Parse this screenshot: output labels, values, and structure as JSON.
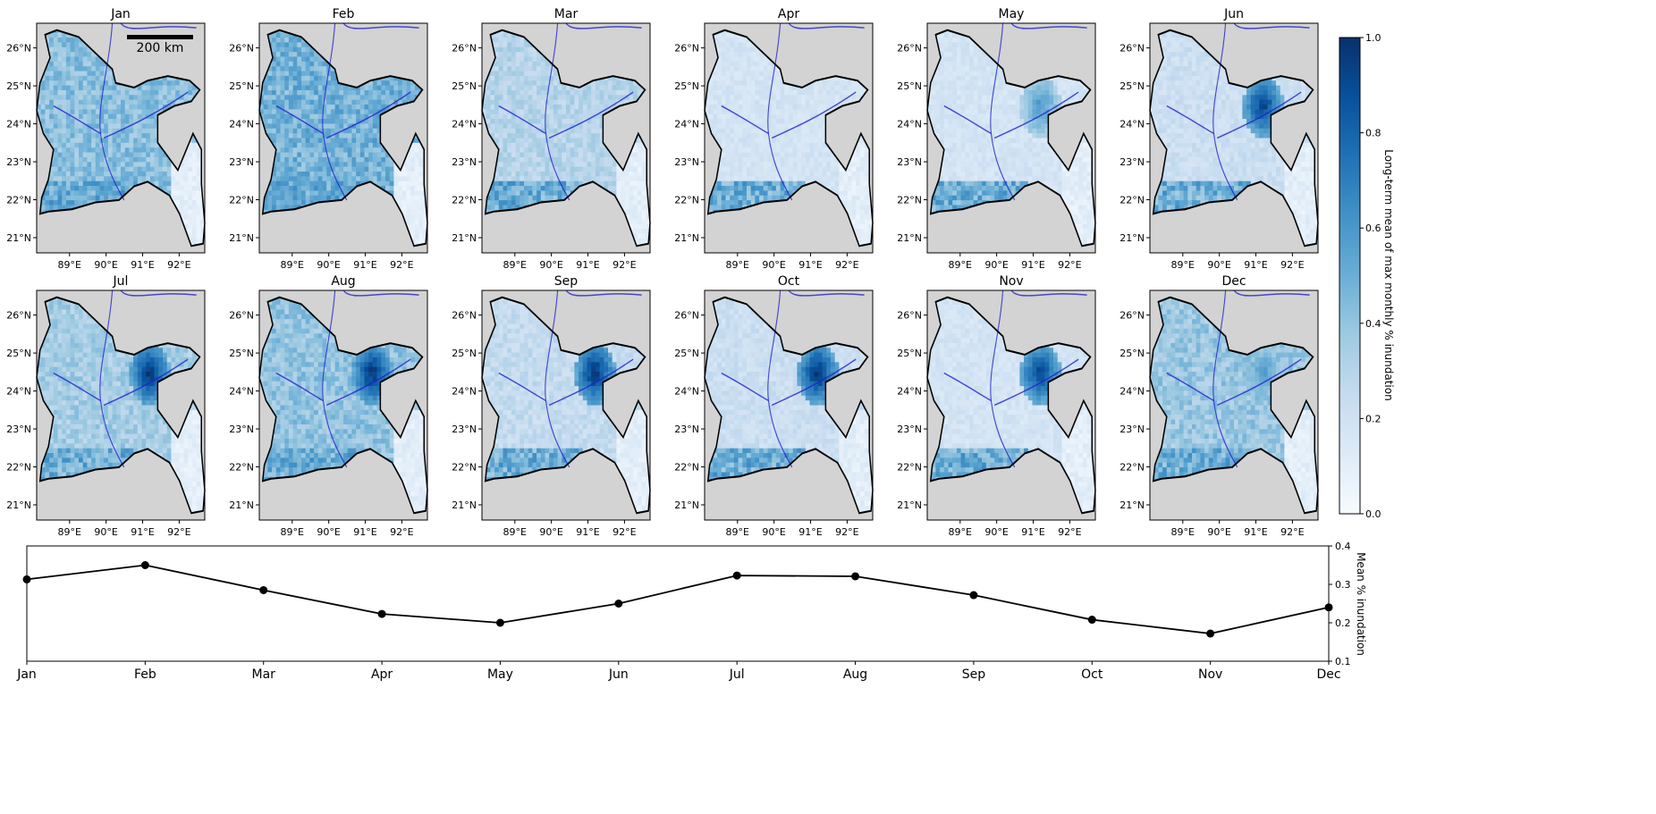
{
  "panel_ticks": {
    "lat_labels": [
      "26°N",
      "25°N",
      "24°N",
      "23°N",
      "22°N",
      "21°N"
    ],
    "lon_labels": [
      "89°E",
      "90°E",
      "91°E",
      "92°E"
    ]
  },
  "scalebar_label": "200 km",
  "colorbar": {
    "label": "Long-term mean of max monthly % inundation",
    "ticks": [
      "0.0",
      "0.2",
      "0.4",
      "0.6",
      "0.8",
      "1.0"
    ],
    "colormap": "Blues",
    "color_low": "#f7fbff",
    "color_high": "#08306b"
  },
  "map_colors": {
    "outside_country": "#d3d3d3",
    "rivers": "#2222cc",
    "border": "#000000"
  },
  "chart_data": [
    {
      "type": "heatmap",
      "description_source": "12 monthly maps of inundation fraction over Bangladesh",
      "panels": [
        {
          "title": "Jan",
          "west_mean": 0.42,
          "haor": 0.45
        },
        {
          "title": "Feb",
          "west_mean": 0.48,
          "haor": 0.45
        },
        {
          "title": "Mar",
          "west_mean": 0.3,
          "haor": 0.2
        },
        {
          "title": "Apr",
          "west_mean": 0.18,
          "haor": 0.1
        },
        {
          "title": "May",
          "west_mean": 0.18,
          "haor": 0.55
        },
        {
          "title": "Jun",
          "west_mean": 0.22,
          "haor": 0.9
        },
        {
          "title": "Jul",
          "west_mean": 0.35,
          "haor": 0.95
        },
        {
          "title": "Aug",
          "west_mean": 0.4,
          "haor": 0.95
        },
        {
          "title": "Sep",
          "west_mean": 0.25,
          "haor": 0.95
        },
        {
          "title": "Oct",
          "west_mean": 0.22,
          "haor": 0.95
        },
        {
          "title": "Nov",
          "west_mean": 0.18,
          "haor": 0.9
        },
        {
          "title": "Dec",
          "west_mean": 0.38,
          "haor": 0.55
        }
      ],
      "x_range": [
        88.1,
        92.7
      ],
      "y_range": [
        20.6,
        26.65
      ],
      "clim": [
        0.0,
        1.0
      ]
    },
    {
      "type": "line",
      "categories": [
        "Jan",
        "Feb",
        "Mar",
        "Apr",
        "May",
        "Jun",
        "Jul",
        "Aug",
        "Sep",
        "Oct",
        "Nov",
        "Dec"
      ],
      "series": [
        {
          "values": [
            0.313,
            0.35,
            0.285,
            0.223,
            0.2,
            0.25,
            0.323,
            0.321,
            0.272,
            0.208,
            0.172,
            0.24
          ]
        }
      ],
      "ylabel": "Mean % inundation",
      "ylim": [
        0.1,
        0.4
      ],
      "yticks": [
        "0.1",
        "0.2",
        "0.3",
        "0.4"
      ],
      "line_color": "#000000"
    }
  ]
}
